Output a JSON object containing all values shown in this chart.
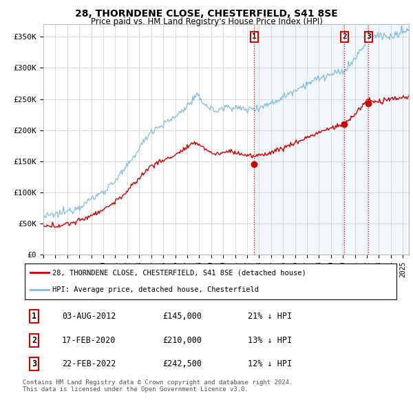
{
  "title": "28, THORNDENE CLOSE, CHESTERFIELD, S41 8SE",
  "subtitle": "Price paid vs. HM Land Registry's House Price Index (HPI)",
  "ylabel_ticks": [
    "£0",
    "£50K",
    "£100K",
    "£150K",
    "£200K",
    "£250K",
    "£300K",
    "£350K"
  ],
  "ytick_values": [
    0,
    50000,
    100000,
    150000,
    200000,
    250000,
    300000,
    350000
  ],
  "ylim": [
    0,
    370000
  ],
  "xlim_start": 1995.0,
  "xlim_end": 2025.5,
  "sale_dates": [
    2012.583,
    2020.125,
    2022.125
  ],
  "sale_prices": [
    145000,
    210000,
    242500
  ],
  "sale_labels": [
    "1",
    "2",
    "3"
  ],
  "vline_color": "#cc0000",
  "legend_entries": [
    "28, THORNDENE CLOSE, CHESTERFIELD, S41 8SE (detached house)",
    "HPI: Average price, detached house, Chesterfield"
  ],
  "table_rows": [
    {
      "num": "1",
      "date": "03-AUG-2012",
      "price": "£145,000",
      "hpi": "21% ↓ HPI"
    },
    {
      "num": "2",
      "date": "17-FEB-2020",
      "price": "£210,000",
      "hpi": "13% ↓ HPI"
    },
    {
      "num": "3",
      "date": "22-FEB-2022",
      "price": "£242,500",
      "hpi": "12% ↓ HPI"
    }
  ],
  "footer": "Contains HM Land Registry data © Crown copyright and database right 2024.\nThis data is licensed under the Open Government Licence v3.0.",
  "hpi_color": "#88bbdd",
  "hpi_fill_color": "#ddeeff",
  "price_color": "#cc0000",
  "background_color": "#ffffff",
  "grid_color": "#cccccc",
  "shade_start": 2012.583
}
